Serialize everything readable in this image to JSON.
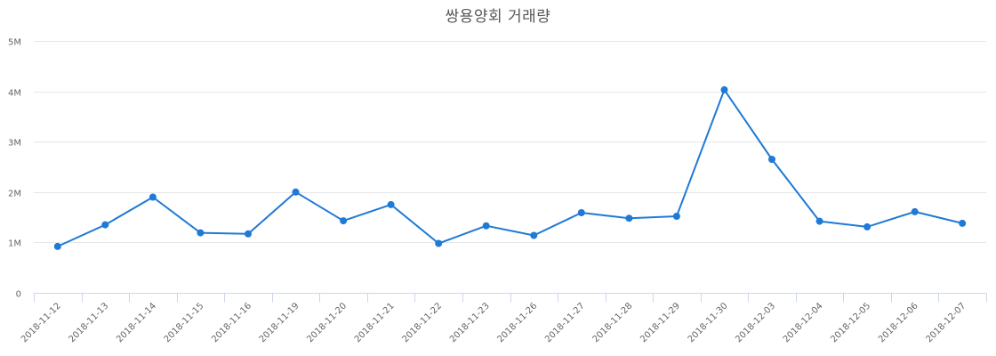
{
  "chart_data": {
    "type": "line",
    "title": "쌍용양회 거래량",
    "xlabel": "",
    "ylabel": "",
    "ylim": [
      0,
      5000000
    ],
    "y_ticks": [
      {
        "value": 0,
        "label": "0"
      },
      {
        "value": 1000000,
        "label": "1M"
      },
      {
        "value": 2000000,
        "label": "2M"
      },
      {
        "value": 3000000,
        "label": "3M"
      },
      {
        "value": 4000000,
        "label": "4M"
      },
      {
        "value": 5000000,
        "label": "5M"
      }
    ],
    "grid": true,
    "legend": null,
    "categories": [
      "2018-11-12",
      "2018-11-13",
      "2018-11-14",
      "2018-11-15",
      "2018-11-16",
      "2018-11-19",
      "2018-11-20",
      "2018-11-21",
      "2018-11-22",
      "2018-11-23",
      "2018-11-26",
      "2018-11-27",
      "2018-11-28",
      "2018-11-29",
      "2018-11-30",
      "2018-12-03",
      "2018-12-04",
      "2018-12-05",
      "2018-12-06",
      "2018-12-07"
    ],
    "series": [
      {
        "name": "거래량",
        "color": "#1e7ad6",
        "values": [
          920000,
          1350000,
          1900000,
          1190000,
          1170000,
          2000000,
          1430000,
          1750000,
          980000,
          1330000,
          1140000,
          1590000,
          1480000,
          1520000,
          4030000,
          2650000,
          1420000,
          1310000,
          1610000,
          1380000
        ]
      }
    ]
  },
  "colors": {
    "line": "#1e7ad6",
    "grid": "#e6e6e6",
    "axis": "#ccd6eb",
    "title": "#555555",
    "tick_text": "#666666"
  }
}
